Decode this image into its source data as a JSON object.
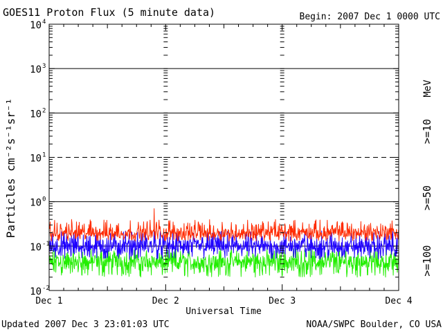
{
  "header": {
    "title": "GOES11 Proton Flux (5 minute data)",
    "begin": "Begin: 2007 Dec 1 0000 UTC"
  },
  "footer": {
    "updated": "Updated 2007 Dec  3 23:01:03 UTC",
    "credit": "NOAA/SWPC Boulder, CO USA"
  },
  "chart_data": {
    "type": "line",
    "title": "GOES11 Proton Flux (5 minute data)",
    "xlabel": "Universal Time",
    "ylabel": "Particles cm⁻²s⁻¹sr⁻¹",
    "yscale": "log",
    "ylim": [
      0.01,
      10000
    ],
    "xlim": [
      "2007-12-01",
      "2007-12-04"
    ],
    "x_ticks": [
      "Dec 1",
      "Dec 2",
      "Dec 3",
      "Dec 4"
    ],
    "y_ticks": [
      {
        "base": "10",
        "exp": "-2"
      },
      {
        "base": "10",
        "exp": "-1"
      },
      {
        "base": "10",
        "exp": "0"
      },
      {
        "base": "10",
        "exp": "1"
      },
      {
        "base": "10",
        "exp": "2"
      },
      {
        "base": "10",
        "exp": "3"
      },
      {
        "base": "10",
        "exp": "4"
      }
    ],
    "unit_label": "MeV",
    "grid": true,
    "series": [
      {
        "name": ">=10",
        "color": "#ff2a00",
        "values": [
          0.13,
          0.4
        ],
        "typical": 0.2,
        "peak": 0.7
      },
      {
        "name": ">=50",
        "color": "#1e00ff",
        "values": [
          0.05,
          0.22
        ],
        "typical": 0.1,
        "peak": 0.25
      },
      {
        "name": ">=100",
        "color": "#22ee00",
        "values": [
          0.02,
          0.09
        ],
        "typical": 0.045
      }
    ]
  }
}
